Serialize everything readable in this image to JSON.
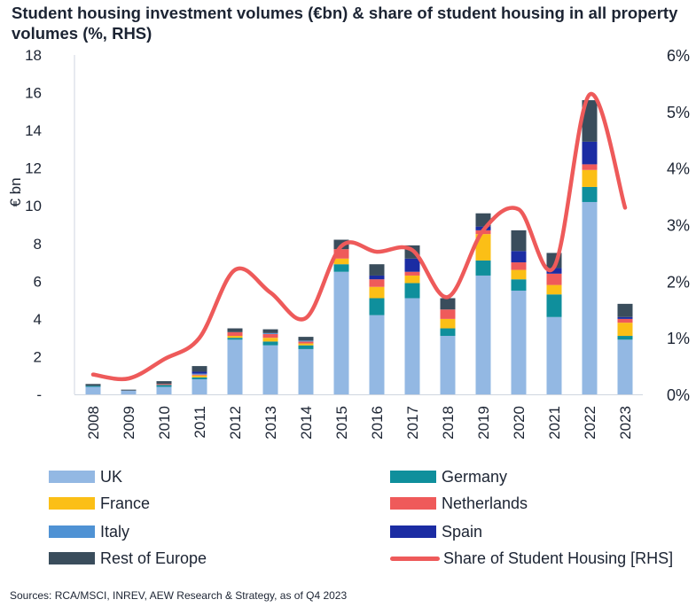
{
  "title": "Student housing investment volumes (€bn) & share of student housing in all property volumes (%, RHS)",
  "source": "Sources: RCA/MSCI, INREV, AEW Research & Strategy, as of Q4 2023",
  "colors": {
    "UK": "#93b8e3",
    "Germany": "#0f8f9c",
    "France": "#fbbf16",
    "Netherlands": "#ef5a5a",
    "Italy": "#4f92d4",
    "Spain": "#1b2ca3",
    "Rest of Europe": "#3a4d5c",
    "Share of Student Housing [RHS]": "#ee5a5a"
  },
  "legend": [
    {
      "key": "UK",
      "label": "UK",
      "kind": "bar"
    },
    {
      "key": "Germany",
      "label": "Germany",
      "kind": "bar"
    },
    {
      "key": "France",
      "label": "France",
      "kind": "bar"
    },
    {
      "key": "Netherlands",
      "label": "Netherlands",
      "kind": "bar"
    },
    {
      "key": "Italy",
      "label": "Italy",
      "kind": "bar"
    },
    {
      "key": "Spain",
      "label": "Spain",
      "kind": "bar"
    },
    {
      "key": "Rest of Europe",
      "label": "Rest of Europe",
      "kind": "bar"
    },
    {
      "key": "Share of Student Housing [RHS]",
      "label": "Share of Student Housing [RHS]",
      "kind": "line"
    }
  ],
  "chart_data": {
    "type": "bar",
    "stacked": true,
    "title": "Student housing investment volumes (€bn) & share of student housing in all property volumes (%, RHS)",
    "ylabel": "€ bn",
    "ylim": [
      0,
      18
    ],
    "y_ticks": [
      "-",
      "2",
      "4",
      "6",
      "8",
      "10",
      "12",
      "14",
      "16",
      "18"
    ],
    "y2lim": [
      0,
      6
    ],
    "y2_ticks": [
      "0%",
      "1%",
      "2%",
      "3%",
      "4%",
      "5%",
      "6%"
    ],
    "grid": false,
    "legend_position": "bottom",
    "categories": [
      "2008",
      "2009",
      "2010",
      "2011",
      "2012",
      "2013",
      "2014",
      "2015",
      "2016",
      "2017",
      "2018",
      "2019",
      "2020",
      "2021",
      "2022",
      "2023"
    ],
    "series": [
      {
        "name": "UK",
        "values": [
          0.4,
          0.2,
          0.4,
          0.8,
          2.9,
          2.6,
          2.4,
          6.5,
          4.2,
          5.1,
          3.1,
          6.3,
          5.5,
          4.1,
          10.2,
          2.9
        ]
      },
      {
        "name": "Germany",
        "values": [
          0.05,
          0.0,
          0.1,
          0.1,
          0.1,
          0.2,
          0.2,
          0.4,
          0.9,
          0.8,
          0.4,
          0.8,
          0.6,
          1.2,
          0.8,
          0.2
        ]
      },
      {
        "name": "France",
        "values": [
          0.0,
          0.0,
          0.0,
          0.1,
          0.1,
          0.2,
          0.1,
          0.3,
          0.6,
          0.4,
          0.5,
          1.4,
          0.5,
          0.5,
          0.9,
          0.7
        ]
      },
      {
        "name": "Netherlands",
        "values": [
          0.0,
          0.0,
          0.05,
          0.05,
          0.2,
          0.2,
          0.1,
          0.5,
          0.4,
          0.2,
          0.5,
          0.2,
          0.4,
          0.6,
          0.3,
          0.2
        ]
      },
      {
        "name": "Italy",
        "values": [
          0.0,
          0.0,
          0.0,
          0.05,
          0.0,
          0.05,
          0.05,
          0.0,
          0.0,
          0.0,
          0.0,
          0.0,
          0.0,
          0.0,
          0.0,
          0.0
        ]
      },
      {
        "name": "Spain",
        "values": [
          0.0,
          0.0,
          0.0,
          0.1,
          0.0,
          0.0,
          0.0,
          0.0,
          0.2,
          0.7,
          0.0,
          0.2,
          0.6,
          0.3,
          1.2,
          0.1
        ]
      },
      {
        "name": "Rest of Europe",
        "values": [
          0.1,
          0.05,
          0.15,
          0.3,
          0.2,
          0.2,
          0.2,
          0.5,
          0.6,
          0.7,
          0.6,
          0.7,
          1.1,
          0.8,
          2.2,
          0.7
        ]
      }
    ],
    "line_series": {
      "name": "Share of Student Housing [RHS]",
      "axis": "right",
      "values": [
        0.35,
        0.28,
        0.62,
        1.0,
        2.2,
        1.8,
        1.35,
        2.62,
        2.52,
        2.55,
        1.72,
        2.9,
        3.27,
        2.25,
        5.3,
        3.3
      ]
    }
  }
}
